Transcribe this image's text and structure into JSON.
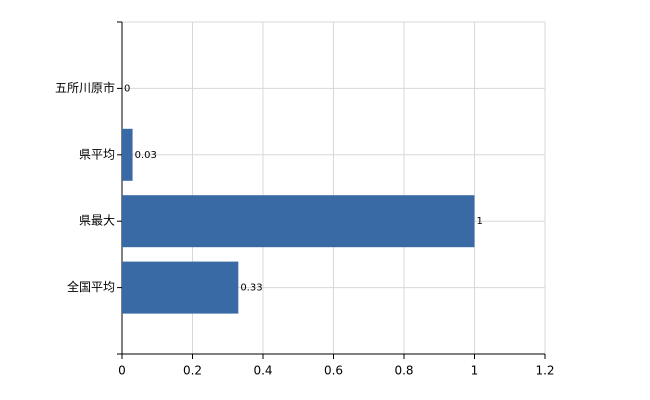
{
  "chart_data": {
    "type": "bar",
    "orientation": "horizontal",
    "categories": [
      "五所川原市",
      "県平均",
      "県最大",
      "全国平均"
    ],
    "values": [
      0,
      0.03,
      1,
      0.33
    ],
    "color": "#3a6aa6",
    "xlim": [
      0,
      1.2
    ],
    "xticks": [
      0,
      0.2,
      0.4,
      0.6,
      0.8,
      1,
      1.2
    ],
    "grid": true
  }
}
